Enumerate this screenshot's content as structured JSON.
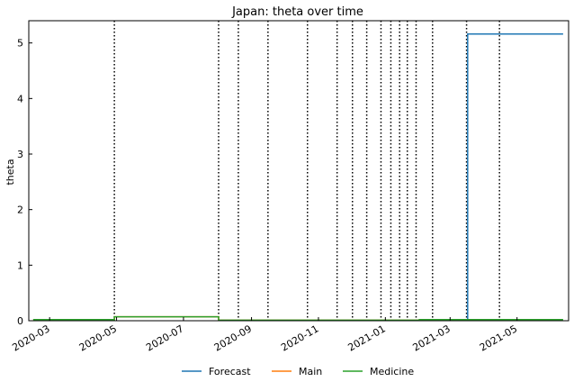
{
  "chart_data": {
    "type": "line",
    "title": "Japan: theta over time",
    "xlabel": "",
    "ylabel": "theta",
    "x_axis_type": "date",
    "xlim": [
      "2020-02-11",
      "2021-06-17"
    ],
    "ylim": [
      0,
      5.4
    ],
    "x_ticks": [
      {
        "date": "2020-03-01",
        "label": "2020-03"
      },
      {
        "date": "2020-05-01",
        "label": "2020-05"
      },
      {
        "date": "2020-07-01",
        "label": "2020-07"
      },
      {
        "date": "2020-09-01",
        "label": "2020-09"
      },
      {
        "date": "2020-11-01",
        "label": "2020-11"
      },
      {
        "date": "2021-01-01",
        "label": "2021-01"
      },
      {
        "date": "2021-03-01",
        "label": "2021-03"
      },
      {
        "date": "2021-05-01",
        "label": "2021-05"
      }
    ],
    "y_ticks": [
      0,
      1,
      2,
      3,
      4,
      5
    ],
    "grid": false,
    "legend_position": "bottom-center",
    "change_points": [
      "2020-04-29",
      "2020-08-02",
      "2020-08-20",
      "2020-09-16",
      "2020-10-22",
      "2020-11-18",
      "2020-12-02",
      "2020-12-15",
      "2020-12-28",
      "2021-01-06",
      "2021-01-14",
      "2021-01-21",
      "2021-01-29",
      "2021-02-13",
      "2021-03-16",
      "2021-04-15"
    ],
    "series": [
      {
        "name": "Forecast",
        "color": "#1f77b4",
        "step": "post",
        "x": [
          "2021-03-17",
          "2021-03-17",
          "2021-06-12"
        ],
        "y": [
          0.02,
          5.16,
          5.16
        ]
      },
      {
        "name": "Main",
        "color": "#ff7f0e",
        "step": "post",
        "x": [
          "2020-02-15",
          "2020-04-29",
          "2020-08-02",
          "2021-02-01",
          "2021-03-17"
        ],
        "y": [
          0.02,
          0.07,
          0.01,
          0.02,
          0.02
        ]
      },
      {
        "name": "Medicine",
        "color": "#2ca02c",
        "step": "post",
        "x": [
          "2020-02-15",
          "2020-04-29",
          "2020-08-02",
          "2021-02-01",
          "2021-06-12"
        ],
        "y": [
          0.02,
          0.07,
          0.01,
          0.02,
          0.02
        ]
      }
    ]
  }
}
